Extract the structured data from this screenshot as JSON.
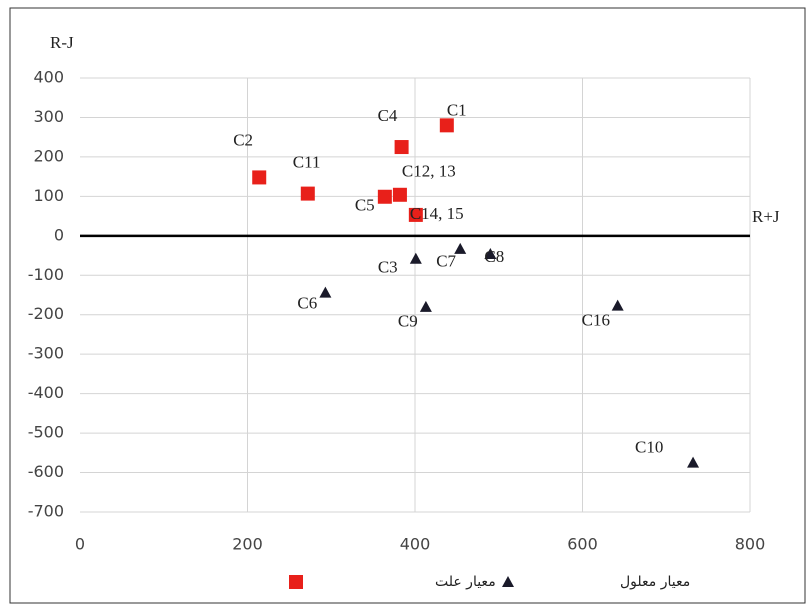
{
  "chart_data": {
    "type": "scatter",
    "y_axis_label": "R-J",
    "x_axis_label": "R+J",
    "xlim": [
      0,
      800
    ],
    "xticks": [
      0,
      200,
      400,
      600,
      800
    ],
    "ylim": [
      -700,
      400
    ],
    "yticks": [
      400,
      300,
      200,
      100,
      0,
      -100,
      -200,
      -300,
      -400,
      -500,
      -600,
      -700
    ],
    "grid": true,
    "series": [
      {
        "name": "معیار علت",
        "color": "#e8201a",
        "marker": "square",
        "x": [
          438,
          214,
          272,
          384,
          364,
          382,
          401
        ],
        "y": [
          280,
          148,
          107,
          225,
          99,
          104,
          53
        ],
        "labels": [
          "C1",
          "C2",
          "C11",
          "C4",
          "C5",
          "C12, 13",
          "C14, 15"
        ]
      },
      {
        "name": "معیار معلول",
        "color": "#1a1a2a",
        "marker": "triangle",
        "x": [
          401,
          454,
          490,
          293,
          413,
          642,
          732
        ],
        "y": [
          -58,
          -33,
          -46,
          -144,
          -180,
          -177,
          -575
        ],
        "labels": [
          "C3",
          "C7",
          "C8",
          "C6",
          "C9",
          "C16",
          "C10"
        ]
      }
    ]
  }
}
